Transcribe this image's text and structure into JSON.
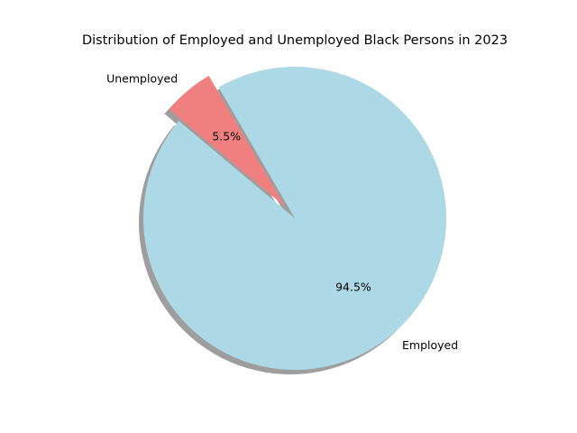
{
  "chart_data": {
    "type": "pie",
    "title": "Distribution of Employed and Unemployed Black Persons in 2023",
    "slices": [
      {
        "label": "Employed",
        "value": 94.5,
        "pct_label": "94.5%",
        "color": "#add8e6",
        "explode": 0
      },
      {
        "label": "Unemployed",
        "value": 5.5,
        "pct_label": "5.5%",
        "color": "#f08080",
        "explode": 0.1
      }
    ],
    "start_angle_deg": 140,
    "counterclockwise": true,
    "shadow": true,
    "legend": "none"
  }
}
